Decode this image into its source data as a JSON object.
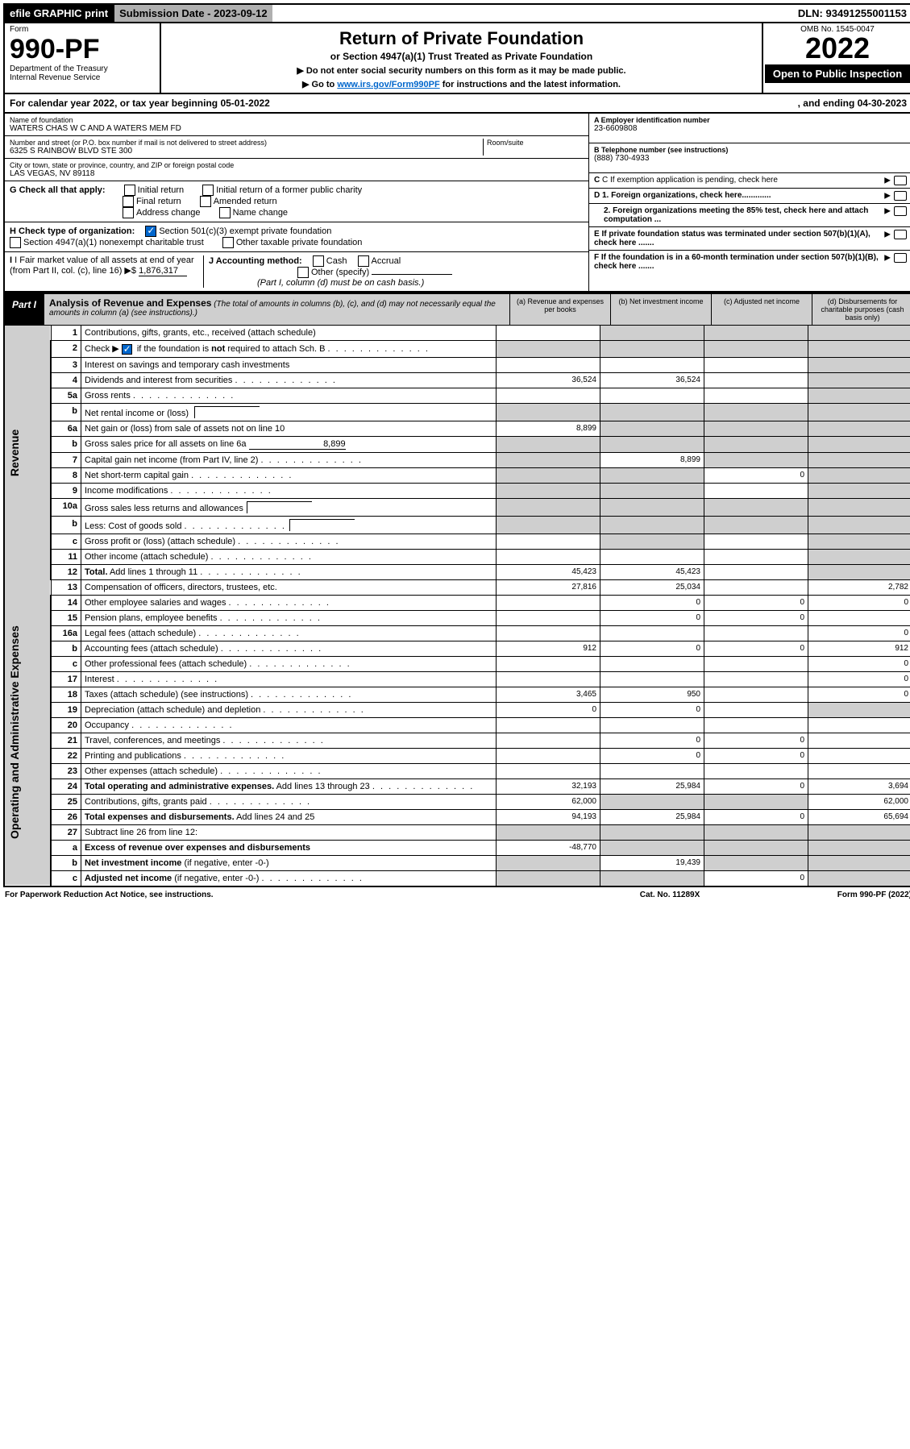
{
  "top": {
    "efile": "efile GRAPHIC print",
    "submission_label": "Submission Date - 2023-09-12",
    "dln": "DLN: 93491255001153"
  },
  "header": {
    "form": "Form",
    "form_no": "990-PF",
    "dept": "Department of the Treasury",
    "irs": "Internal Revenue Service",
    "title": "Return of Private Foundation",
    "subtitle": "or Section 4947(a)(1) Trust Treated as Private Foundation",
    "instr1": "▶ Do not enter social security numbers on this form as it may be made public.",
    "instr2_pre": "▶ Go to ",
    "instr2_link": "www.irs.gov/Form990PF",
    "instr2_post": " for instructions and the latest information.",
    "omb": "OMB No. 1545-0047",
    "year": "2022",
    "open": "Open to Public Inspection"
  },
  "calendar": {
    "text_pre": "For calendar year 2022, or tax year beginning ",
    "begin": "05-01-2022",
    "text_mid": ", and ending ",
    "end": "04-30-2023"
  },
  "entity": {
    "name_label": "Name of foundation",
    "name": "WATERS CHAS W C AND A WATERS MEM FD",
    "addr_label": "Number and street (or P.O. box number if mail is not delivered to street address)",
    "addr": "6325 S RAINBOW BLVD STE 300",
    "room_label": "Room/suite",
    "city_label": "City or town, state or province, country, and ZIP or foreign postal code",
    "city": "LAS VEGAS, NV  89118",
    "ein_label": "A Employer identification number",
    "ein": "23-6609808",
    "phone_label": "B Telephone number (see instructions)",
    "phone": "(888) 730-4933",
    "c_label": "C If exemption application is pending, check here",
    "d1": "D 1. Foreign organizations, check here.............",
    "d2": "2. Foreign organizations meeting the 85% test, check here and attach computation ...",
    "e": "E  If private foundation status was terminated under section 507(b)(1)(A), check here .......",
    "f": "F  If the foundation is in a 60-month termination under section 507(b)(1)(B), check here .......",
    "g_label": "G Check all that apply:",
    "g_opts": [
      "Initial return",
      "Initial return of a former public charity",
      "Final return",
      "Amended return",
      "Address change",
      "Name change"
    ],
    "h_label": "H Check type of organization:",
    "h1": "Section 501(c)(3) exempt private foundation",
    "h2": "Section 4947(a)(1) nonexempt charitable trust",
    "h3": "Other taxable private foundation",
    "i_label": "I Fair market value of all assets at end of year (from Part II, col. (c), line 16)",
    "i_val": "1,876,317",
    "j_label": "J Accounting method:",
    "j_opts": [
      "Cash",
      "Accrual"
    ],
    "j_other": "Other (specify)",
    "j_note": "(Part I, column (d) must be on cash basis.)"
  },
  "part1": {
    "label": "Part I",
    "title": "Analysis of Revenue and Expenses",
    "note": "(The total of amounts in columns (b), (c), and (d) may not necessarily equal the amounts in column (a) (see instructions).)",
    "cols": {
      "a": "(a) Revenue and expenses per books",
      "b": "(b) Net investment income",
      "c": "(c) Adjusted net income",
      "d": "(d) Disbursements for charitable purposes (cash basis only)"
    }
  },
  "sections": {
    "revenue": "Revenue",
    "expenses": "Operating and Administrative Expenses"
  },
  "rows": [
    {
      "ln": "1",
      "desc": "Contributions, gifts, grants, etc., received (attach schedule)",
      "a": "",
      "b": "g",
      "c": "g",
      "d": "g"
    },
    {
      "ln": "2",
      "desc": "Check ▶ [✓] if the foundation is <b>not</b> required to attach Sch. B",
      "dotted": true,
      "a": "g",
      "b": "g",
      "c": "g",
      "d": "g"
    },
    {
      "ln": "3",
      "desc": "Interest on savings and temporary cash investments",
      "a": "",
      "b": "",
      "c": "",
      "d": "g"
    },
    {
      "ln": "4",
      "desc": "Dividends and interest from securities",
      "dotted": true,
      "a": "36,524",
      "b": "36,524",
      "c": "",
      "d": "g"
    },
    {
      "ln": "5a",
      "desc": "Gross rents",
      "dotted": true,
      "a": "",
      "b": "",
      "c": "",
      "d": "g"
    },
    {
      "ln": "b",
      "desc": "Net rental income or (loss) ",
      "box": true,
      "a": "g",
      "b": "g",
      "c": "g",
      "d": "g"
    },
    {
      "ln": "6a",
      "desc": "Net gain or (loss) from sale of assets not on line 10",
      "a": "8,899",
      "b": "g",
      "c": "g",
      "d": "g"
    },
    {
      "ln": "b",
      "desc": "Gross sales price for all assets on line 6a ",
      "val_inline": "8,899",
      "a": "g",
      "b": "g",
      "c": "g",
      "d": "g"
    },
    {
      "ln": "7",
      "desc": "Capital gain net income (from Part IV, line 2)",
      "dotted": true,
      "a": "g",
      "b": "8,899",
      "c": "g",
      "d": "g"
    },
    {
      "ln": "8",
      "desc": "Net short-term capital gain",
      "dotted": true,
      "a": "g",
      "b": "g",
      "c": "0",
      "d": "g"
    },
    {
      "ln": "9",
      "desc": "Income modifications",
      "dotted": true,
      "a": "g",
      "b": "g",
      "c": "",
      "d": "g"
    },
    {
      "ln": "10a",
      "desc": "Gross sales less returns and allowances",
      "box": true,
      "a": "g",
      "b": "g",
      "c": "g",
      "d": "g"
    },
    {
      "ln": "b",
      "desc": "Less: Cost of goods sold",
      "dotted": true,
      "box": true,
      "a": "g",
      "b": "g",
      "c": "g",
      "d": "g"
    },
    {
      "ln": "c",
      "desc": "Gross profit or (loss) (attach schedule)",
      "dotted": true,
      "a": "",
      "b": "g",
      "c": "",
      "d": "g"
    },
    {
      "ln": "11",
      "desc": "Other income (attach schedule)",
      "dotted": true,
      "a": "",
      "b": "",
      "c": "",
      "d": "g"
    },
    {
      "ln": "12",
      "desc": "<b>Total.</b> Add lines 1 through 11",
      "dotted": true,
      "a": "45,423",
      "b": "45,423",
      "c": "",
      "d": "g"
    }
  ],
  "exp_rows": [
    {
      "ln": "13",
      "desc": "Compensation of officers, directors, trustees, etc.",
      "a": "27,816",
      "b": "25,034",
      "c": "",
      "d": "2,782"
    },
    {
      "ln": "14",
      "desc": "Other employee salaries and wages",
      "dotted": true,
      "a": "",
      "b": "0",
      "c": "0",
      "d": "0"
    },
    {
      "ln": "15",
      "desc": "Pension plans, employee benefits",
      "dotted": true,
      "a": "",
      "b": "0",
      "c": "0",
      "d": ""
    },
    {
      "ln": "16a",
      "desc": "Legal fees (attach schedule)",
      "dotted": true,
      "a": "",
      "b": "",
      "c": "",
      "d": "0"
    },
    {
      "ln": "b",
      "desc": "Accounting fees (attach schedule)",
      "dotted": true,
      "a": "912",
      "b": "0",
      "c": "0",
      "d": "912"
    },
    {
      "ln": "c",
      "desc": "Other professional fees (attach schedule)",
      "dotted": true,
      "a": "",
      "b": "",
      "c": "",
      "d": "0"
    },
    {
      "ln": "17",
      "desc": "Interest",
      "dotted": true,
      "a": "",
      "b": "",
      "c": "",
      "d": "0"
    },
    {
      "ln": "18",
      "desc": "Taxes (attach schedule) (see instructions)",
      "dotted": true,
      "a": "3,465",
      "b": "950",
      "c": "",
      "d": "0"
    },
    {
      "ln": "19",
      "desc": "Depreciation (attach schedule) and depletion",
      "dotted": true,
      "a": "0",
      "b": "0",
      "c": "",
      "d": "g"
    },
    {
      "ln": "20",
      "desc": "Occupancy",
      "dotted": true,
      "a": "",
      "b": "",
      "c": "",
      "d": ""
    },
    {
      "ln": "21",
      "desc": "Travel, conferences, and meetings",
      "dotted": true,
      "a": "",
      "b": "0",
      "c": "0",
      "d": ""
    },
    {
      "ln": "22",
      "desc": "Printing and publications",
      "dotted": true,
      "a": "",
      "b": "0",
      "c": "0",
      "d": ""
    },
    {
      "ln": "23",
      "desc": "Other expenses (attach schedule)",
      "dotted": true,
      "a": "",
      "b": "",
      "c": "",
      "d": ""
    },
    {
      "ln": "24",
      "desc": "<b>Total operating and administrative expenses.</b> Add lines 13 through 23",
      "dotted": true,
      "a": "32,193",
      "b": "25,984",
      "c": "0",
      "d": "3,694"
    },
    {
      "ln": "25",
      "desc": "Contributions, gifts, grants paid",
      "dotted": true,
      "a": "62,000",
      "b": "g",
      "c": "g",
      "d": "62,000"
    },
    {
      "ln": "26",
      "desc": "<b>Total expenses and disbursements.</b> Add lines 24 and 25",
      "a": "94,193",
      "b": "25,984",
      "c": "0",
      "d": "65,694"
    },
    {
      "ln": "27",
      "desc": "Subtract line 26 from line 12:",
      "a": "g",
      "b": "g",
      "c": "g",
      "d": "g"
    },
    {
      "ln": "a",
      "desc": "<b>Excess of revenue over expenses and disbursements</b>",
      "a": "-48,770",
      "b": "g",
      "c": "g",
      "d": "g"
    },
    {
      "ln": "b",
      "desc": "<b>Net investment income</b> (if negative, enter -0-)",
      "a": "g",
      "b": "19,439",
      "c": "g",
      "d": "g"
    },
    {
      "ln": "c",
      "desc": "<b>Adjusted net income</b> (if negative, enter -0-)",
      "dotted": true,
      "a": "g",
      "b": "g",
      "c": "0",
      "d": "g"
    }
  ],
  "footer": {
    "left": "For Paperwork Reduction Act Notice, see instructions.",
    "mid": "Cat. No. 11289X",
    "right": "Form 990-PF (2022)"
  }
}
